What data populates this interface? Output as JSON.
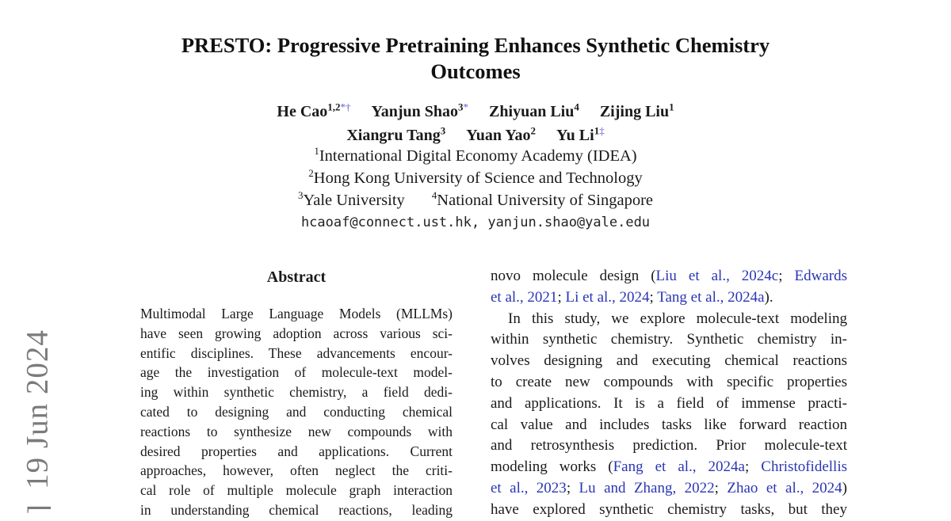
{
  "arxiv_banner": {
    "date_text": "19 Jun 2024",
    "bracket_fragment": "]",
    "color": "#7b7b7b"
  },
  "title": {
    "lines": [
      "PRESTO: Progressive Pretraining Enhances Synthetic Chemistry",
      "Outcomes"
    ]
  },
  "authors": {
    "rows": [
      [
        {
          "name": "He Cao",
          "sups": [
            {
              "t": "1,2",
              "kind": "num"
            },
            {
              "t": "*†",
              "kind": "mark"
            }
          ]
        },
        {
          "name": "Yanjun Shao",
          "sups": [
            {
              "t": "3",
              "kind": "num"
            },
            {
              "t": "*",
              "kind": "mark"
            }
          ]
        },
        {
          "name": "Zhiyuan Liu",
          "sups": [
            {
              "t": "4",
              "kind": "num"
            }
          ]
        },
        {
          "name": "Zijing Liu",
          "sups": [
            {
              "t": "1",
              "kind": "num"
            }
          ]
        }
      ],
      [
        {
          "name": "Xiangru Tang",
          "sups": [
            {
              "t": "3",
              "kind": "num"
            }
          ]
        },
        {
          "name": "Yuan Yao",
          "sups": [
            {
              "t": "2",
              "kind": "num"
            }
          ]
        },
        {
          "name": "Yu Li",
          "sups": [
            {
              "t": "1",
              "kind": "num"
            },
            {
              "t": "‡",
              "kind": "mark"
            }
          ]
        }
      ]
    ]
  },
  "affiliations": [
    [
      {
        "sup": "1",
        "text": "International Digital Economy Academy (IDEA)"
      }
    ],
    [
      {
        "sup": "2",
        "text": "Hong Kong University of Science and Technology"
      }
    ],
    [
      {
        "sup": "3",
        "text": "Yale University"
      },
      {
        "sup": "4",
        "text": "National University of Singapore"
      }
    ]
  ],
  "contact": {
    "emails": "hcaoaf@connect.ust.hk, yanjun.shao@yale.edu"
  },
  "abstract": {
    "heading": "Abstract",
    "lines": [
      "Multimodal Large Language Models (MLLMs)",
      "have seen growing adoption across various sci-",
      "entific disciplines. These advancements encour-",
      "age the investigation of molecule-text model-",
      "ing within synthetic chemistry, a field dedi-",
      "cated to designing and conducting chemical",
      "reactions to synthesize new compounds with",
      "desired properties and applications. Current",
      "approaches, however, often neglect the criti-",
      "cal role of multiple molecule graph interaction",
      "in understanding chemical reactions, leading"
    ]
  },
  "body_right": {
    "lines": [
      {
        "seg": [
          {
            "t": "novo molecule design ("
          },
          {
            "t": "Liu et al., 2024c",
            "cite": true
          },
          {
            "t": "; "
          },
          {
            "t": "Edwards",
            "cite": true
          }
        ]
      },
      {
        "seg": [
          {
            "t": "et al., 2021",
            "cite": true
          },
          {
            "t": "; "
          },
          {
            "t": "Li et al., 2024",
            "cite": true
          },
          {
            "t": "; "
          },
          {
            "t": "Tang et al., 2024a",
            "cite": true
          },
          {
            "t": ")."
          }
        ],
        "end": true
      },
      {
        "seg": [
          {
            "t": "In this study, we explore molecule-text modeling"
          }
        ],
        "indent": true
      },
      {
        "seg": [
          {
            "t": "within synthetic chemistry. Synthetic chemistry in-"
          }
        ]
      },
      {
        "seg": [
          {
            "t": "volves designing and executing chemical reactions"
          }
        ]
      },
      {
        "seg": [
          {
            "t": "to create new compounds with specific properties"
          }
        ]
      },
      {
        "seg": [
          {
            "t": "and applications. It is a field of immense practi-"
          }
        ]
      },
      {
        "seg": [
          {
            "t": "cal value and includes tasks like forward reaction"
          }
        ]
      },
      {
        "seg": [
          {
            "t": "and retrosynthesis prediction. Prior molecule-text"
          }
        ]
      },
      {
        "seg": [
          {
            "t": "modeling works ("
          },
          {
            "t": "Fang et al., 2024a",
            "cite": true
          },
          {
            "t": "; "
          },
          {
            "t": "Christofidellis",
            "cite": true
          }
        ]
      },
      {
        "seg": [
          {
            "t": "et al., 2023",
            "cite": true
          },
          {
            "t": "; "
          },
          {
            "t": "Lu and Zhang, 2022",
            "cite": true
          },
          {
            "t": "; "
          },
          {
            "t": "Zhao et al., 2024",
            "cite": true
          },
          {
            "t": ")"
          }
        ]
      },
      {
        "seg": [
          {
            "t": "have explored synthetic chemistry tasks, but they"
          }
        ]
      }
    ]
  },
  "colors": {
    "text": "#1a1a1a",
    "citation": "#2936b4",
    "footnote_mark": "#5a5ad0",
    "banner": "#7b7b7b",
    "background": "#ffffff"
  }
}
